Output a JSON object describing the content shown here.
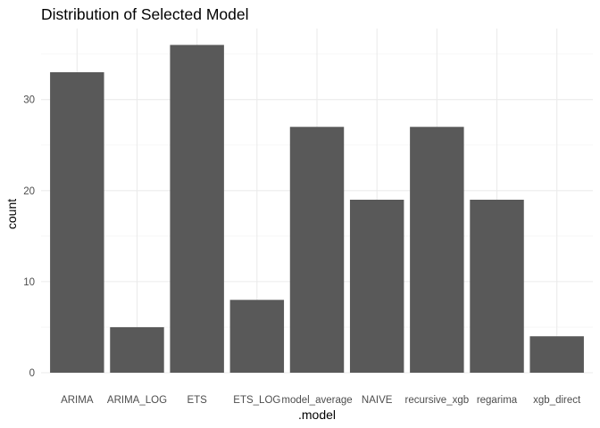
{
  "chart_data": {
    "type": "bar",
    "title": "Distribution of Selected Model",
    "xlabel": ".model",
    "ylabel": "count",
    "categories": [
      "ARIMA",
      "ARIMA_LOG",
      "ETS",
      "ETS_LOG",
      "model_average",
      "NAIVE",
      "recursive_xgb",
      "regarima",
      "xgb_direct"
    ],
    "values": [
      33,
      5,
      36,
      8,
      27,
      19,
      27,
      19,
      4
    ],
    "y_ticks": [
      0,
      10,
      20,
      30
    ],
    "ylim": [
      0,
      37.8
    ],
    "grid": true,
    "legend": "none",
    "colors": {
      "bar": "#595959",
      "grid_major": "#ebebeb",
      "grid_minor": "#f5f5f5",
      "tick_text": "#4d4d4d",
      "background": "#ffffff"
    }
  }
}
